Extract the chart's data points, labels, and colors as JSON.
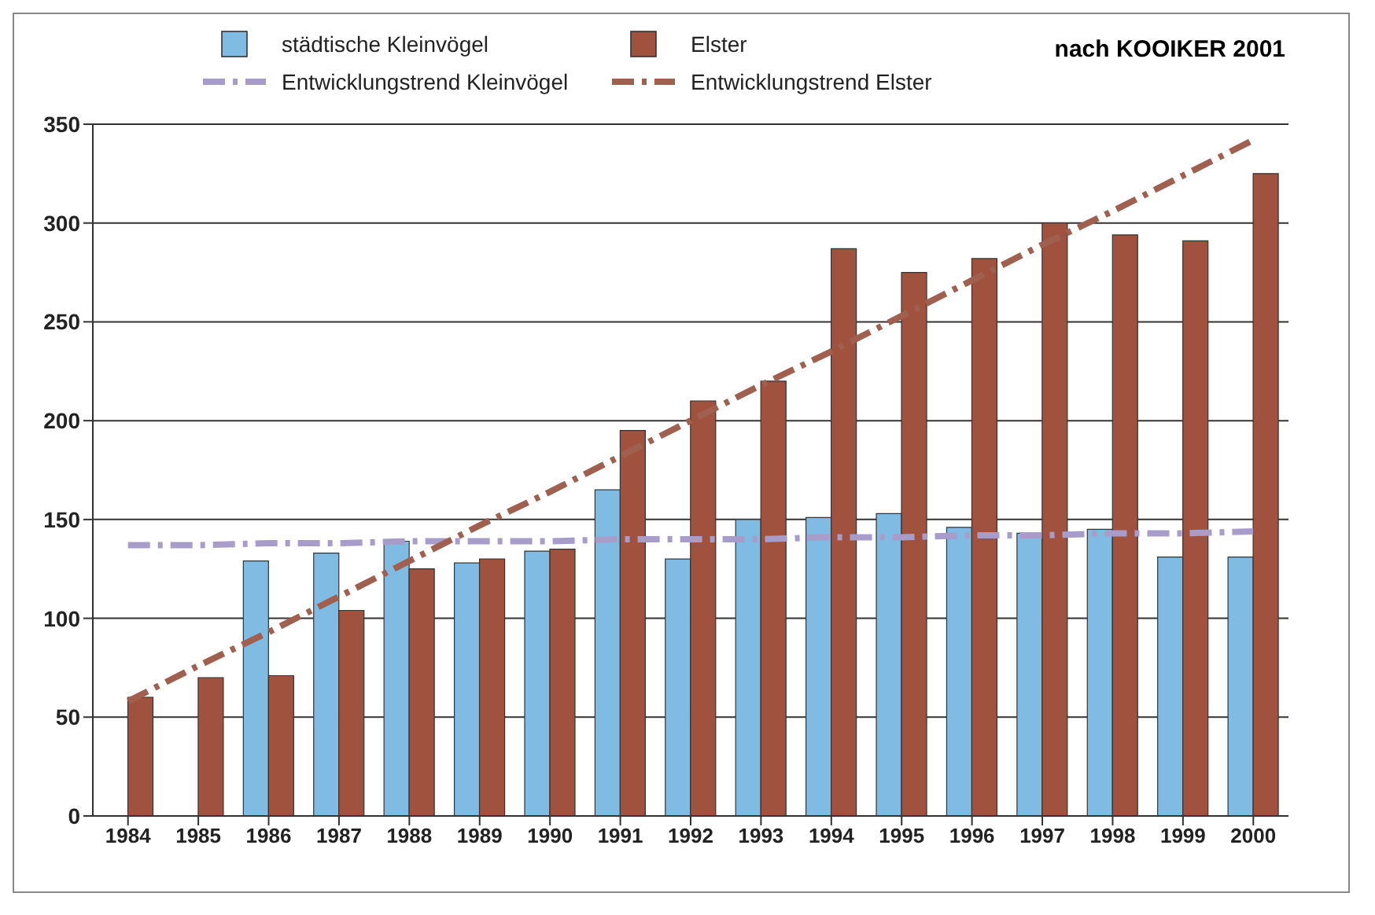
{
  "chart_data": {
    "type": "bar",
    "categories": [
      "1984",
      "1985",
      "1986",
      "1987",
      "1988",
      "1989",
      "1990",
      "1991",
      "1992",
      "1993",
      "1994",
      "1995",
      "1996",
      "1997",
      "1998",
      "1999",
      "2000"
    ],
    "series": [
      {
        "name": "städtische Kleinvögel",
        "color": "#80bbe3",
        "values": [
          null,
          null,
          129,
          133,
          139,
          128,
          134,
          165,
          130,
          150,
          151,
          153,
          146,
          143,
          145,
          131,
          131
        ]
      },
      {
        "name": "Elster",
        "color": "#a0523f",
        "values": [
          60,
          70,
          71,
          104,
          125,
          130,
          135,
          195,
          210,
          220,
          287,
          275,
          282,
          300,
          294,
          291,
          325
        ]
      },
      {
        "name": "Entwicklungstrend Kleinvögel",
        "type": "line",
        "color": "#a89ccb",
        "values": [
          137,
          137,
          138,
          138,
          139,
          139,
          139,
          140,
          140,
          140,
          141,
          141,
          142,
          142,
          143,
          143,
          144
        ],
        "line_style": "dashed"
      },
      {
        "name": "Entwicklungstrend Elster",
        "type": "line",
        "color": "#a0604f",
        "values": [
          58,
          76,
          93,
          111,
          129,
          147,
          164,
          182,
          200,
          218,
          235,
          253,
          271,
          289,
          306,
          324,
          342
        ],
        "line_style": "dashed"
      }
    ],
    "ylim": [
      0,
      350
    ],
    "yticks": [
      0,
      50,
      100,
      150,
      200,
      250,
      300,
      350
    ],
    "grid": "y",
    "legend": "top",
    "marker": "none",
    "annotations": [
      "nach KOOIKER 2001"
    ]
  }
}
